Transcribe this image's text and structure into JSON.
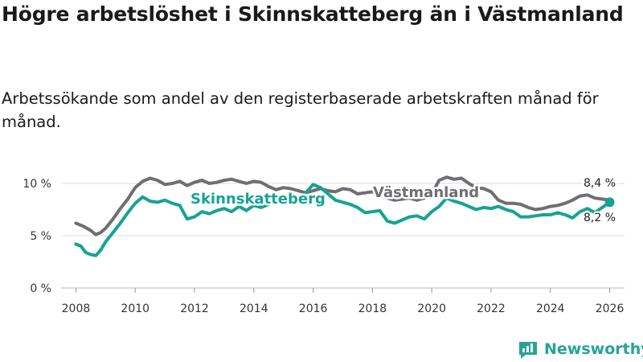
{
  "title": "Högre arbetslöshet i Skinnskatteberg än i Västmanland",
  "subtitle": "Arbetssökande som andel av den registerbaserade arbetskraften månad för månad.",
  "brand": {
    "name": "Newsworthy",
    "icon": "newsworthy-logo-icon",
    "color": "#26a39a"
  },
  "chart_data": {
    "type": "line",
    "title": "Högre arbetslöshet i Skinnskatteberg än i Västmanland",
    "xlabel": "",
    "ylabel": "",
    "x_range": [
      2007.5,
      2026.5
    ],
    "ylim": [
      0,
      10
    ],
    "yticks": [
      0,
      5,
      10
    ],
    "ytick_labels": [
      "0 %",
      "5 %",
      "10 %"
    ],
    "xticks": [
      2008,
      2010,
      2012,
      2014,
      2016,
      2018,
      2020,
      2022,
      2024,
      2026
    ],
    "xtick_labels": [
      "2008",
      "2010",
      "2012",
      "2014",
      "2016",
      "2018",
      "2020",
      "2022",
      "2024",
      "2026"
    ],
    "grid": "horizontal",
    "series": [
      {
        "name": "Västmanland",
        "color": "#6e6e73",
        "label": "Västmanland",
        "end_label": "8,4 %",
        "points": [
          [
            2008.0,
            6.2
          ],
          [
            2008.25,
            5.9
          ],
          [
            2008.5,
            5.5
          ],
          [
            2008.67,
            5.1
          ],
          [
            2008.83,
            5.3
          ],
          [
            2009.0,
            5.7
          ],
          [
            2009.25,
            6.6
          ],
          [
            2009.5,
            7.6
          ],
          [
            2009.75,
            8.5
          ],
          [
            2010.0,
            9.6
          ],
          [
            2010.25,
            10.2
          ],
          [
            2010.5,
            10.5
          ],
          [
            2010.75,
            10.3
          ],
          [
            2011.0,
            9.9
          ],
          [
            2011.25,
            10.0
          ],
          [
            2011.5,
            10.2
          ],
          [
            2011.75,
            9.8
          ],
          [
            2012.0,
            10.1
          ],
          [
            2012.25,
            10.3
          ],
          [
            2012.5,
            10.0
          ],
          [
            2012.75,
            10.1
          ],
          [
            2013.0,
            10.3
          ],
          [
            2013.25,
            10.4
          ],
          [
            2013.5,
            10.2
          ],
          [
            2013.75,
            10.0
          ],
          [
            2014.0,
            10.2
          ],
          [
            2014.25,
            10.1
          ],
          [
            2014.5,
            9.7
          ],
          [
            2014.75,
            9.4
          ],
          [
            2015.0,
            9.6
          ],
          [
            2015.25,
            9.5
          ],
          [
            2015.5,
            9.3
          ],
          [
            2015.75,
            9.1
          ],
          [
            2016.0,
            9.3
          ],
          [
            2016.25,
            9.5
          ],
          [
            2016.5,
            9.3
          ],
          [
            2016.75,
            9.2
          ],
          [
            2017.0,
            9.5
          ],
          [
            2017.25,
            9.4
          ],
          [
            2017.5,
            9.0
          ],
          [
            2017.75,
            9.1
          ],
          [
            2018.0,
            9.2
          ],
          [
            2018.25,
            9.0
          ],
          [
            2018.5,
            8.6
          ],
          [
            2018.75,
            8.4
          ],
          [
            2019.0,
            8.5
          ],
          [
            2019.25,
            8.6
          ],
          [
            2019.5,
            8.4
          ],
          [
            2019.75,
            8.6
          ],
          [
            2020.0,
            9.0
          ],
          [
            2020.25,
            10.3
          ],
          [
            2020.5,
            10.6
          ],
          [
            2020.75,
            10.4
          ],
          [
            2021.0,
            10.5
          ],
          [
            2021.25,
            10.0
          ],
          [
            2021.5,
            9.6
          ],
          [
            2021.75,
            9.5
          ],
          [
            2022.0,
            9.2
          ],
          [
            2022.25,
            8.4
          ],
          [
            2022.5,
            8.1
          ],
          [
            2022.75,
            8.1
          ],
          [
            2023.0,
            8.0
          ],
          [
            2023.25,
            7.7
          ],
          [
            2023.5,
            7.5
          ],
          [
            2023.75,
            7.6
          ],
          [
            2024.0,
            7.8
          ],
          [
            2024.25,
            7.9
          ],
          [
            2024.5,
            8.1
          ],
          [
            2024.75,
            8.4
          ],
          [
            2025.0,
            8.8
          ],
          [
            2025.25,
            8.9
          ],
          [
            2025.5,
            8.6
          ],
          [
            2025.75,
            8.5
          ],
          [
            2026.0,
            8.4
          ]
        ]
      },
      {
        "name": "Skinnskatteberg",
        "color": "#16a394",
        "label": "Skinnskatteberg",
        "end_label": "8,2 %",
        "points": [
          [
            2008.0,
            4.2
          ],
          [
            2008.17,
            4.0
          ],
          [
            2008.33,
            3.4
          ],
          [
            2008.5,
            3.2
          ],
          [
            2008.67,
            3.1
          ],
          [
            2008.83,
            3.6
          ],
          [
            2009.0,
            4.4
          ],
          [
            2009.25,
            5.3
          ],
          [
            2009.5,
            6.2
          ],
          [
            2009.75,
            7.2
          ],
          [
            2010.0,
            8.1
          ],
          [
            2010.25,
            8.7
          ],
          [
            2010.5,
            8.3
          ],
          [
            2010.75,
            8.2
          ],
          [
            2011.0,
            8.4
          ],
          [
            2011.25,
            8.1
          ],
          [
            2011.5,
            7.9
          ],
          [
            2011.75,
            6.6
          ],
          [
            2012.0,
            6.8
          ],
          [
            2012.25,
            7.3
          ],
          [
            2012.5,
            7.1
          ],
          [
            2012.75,
            7.4
          ],
          [
            2013.0,
            7.6
          ],
          [
            2013.25,
            7.3
          ],
          [
            2013.5,
            7.8
          ],
          [
            2013.75,
            7.4
          ],
          [
            2014.0,
            7.9
          ],
          [
            2014.25,
            7.7
          ],
          [
            2014.5,
            8.0
          ],
          [
            2014.75,
            8.2
          ],
          [
            2015.0,
            8.1
          ],
          [
            2015.25,
            8.3
          ],
          [
            2015.5,
            8.5
          ],
          [
            2015.75,
            9.1
          ],
          [
            2016.0,
            9.9
          ],
          [
            2016.25,
            9.6
          ],
          [
            2016.5,
            9.0
          ],
          [
            2016.75,
            8.4
          ],
          [
            2017.0,
            8.2
          ],
          [
            2017.25,
            8.0
          ],
          [
            2017.5,
            7.7
          ],
          [
            2017.75,
            7.2
          ],
          [
            2018.0,
            7.3
          ],
          [
            2018.25,
            7.4
          ],
          [
            2018.5,
            6.4
          ],
          [
            2018.75,
            6.2
          ],
          [
            2019.0,
            6.5
          ],
          [
            2019.25,
            6.8
          ],
          [
            2019.5,
            6.9
          ],
          [
            2019.75,
            6.6
          ],
          [
            2020.0,
            7.3
          ],
          [
            2020.25,
            7.8
          ],
          [
            2020.5,
            8.6
          ],
          [
            2020.75,
            8.3
          ],
          [
            2021.0,
            8.1
          ],
          [
            2021.25,
            7.8
          ],
          [
            2021.5,
            7.5
          ],
          [
            2021.75,
            7.7
          ],
          [
            2022.0,
            7.6
          ],
          [
            2022.25,
            7.8
          ],
          [
            2022.5,
            7.5
          ],
          [
            2022.75,
            7.3
          ],
          [
            2023.0,
            6.8
          ],
          [
            2023.25,
            6.8
          ],
          [
            2023.5,
            6.9
          ],
          [
            2023.75,
            7.0
          ],
          [
            2024.0,
            7.0
          ],
          [
            2024.25,
            7.2
          ],
          [
            2024.5,
            7.0
          ],
          [
            2024.75,
            6.7
          ],
          [
            2025.0,
            7.3
          ],
          [
            2025.25,
            7.6
          ],
          [
            2025.5,
            7.2
          ],
          [
            2025.75,
            7.7
          ],
          [
            2026.0,
            8.2
          ]
        ]
      }
    ]
  }
}
